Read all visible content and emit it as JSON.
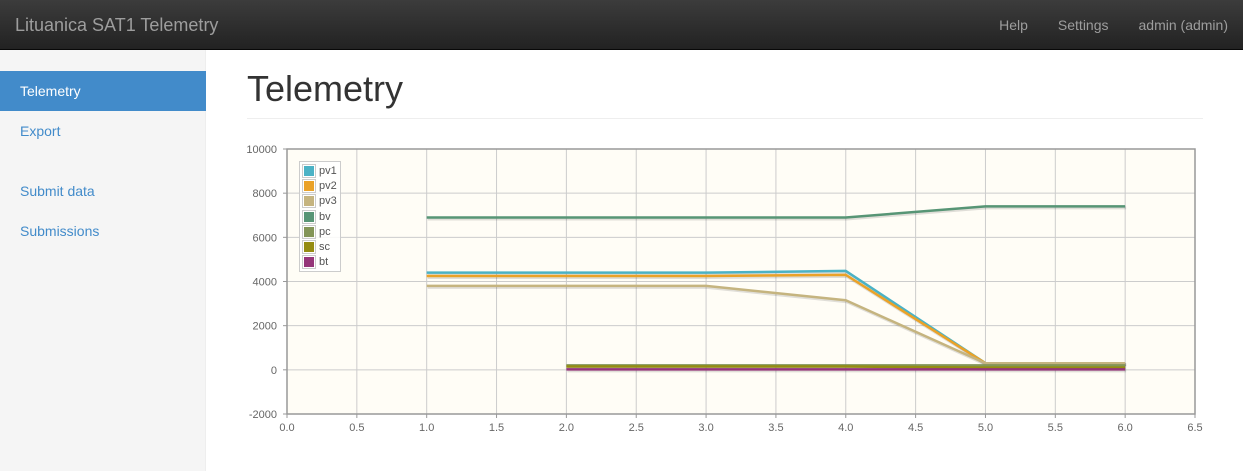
{
  "navbar": {
    "brand": "Lituanica SAT1 Telemetry",
    "links": [
      "Help",
      "Settings",
      "admin (admin)"
    ]
  },
  "sidebar": {
    "group1": [
      "Telemetry",
      "Export"
    ],
    "group2": [
      "Submit data",
      "Submissions"
    ]
  },
  "main": {
    "title": "Telemetry"
  },
  "chart_data": {
    "type": "line",
    "xlim": [
      0,
      6.5
    ],
    "ylim": [
      -2000,
      10000
    ],
    "x_ticks": [
      "0.0",
      "0.5",
      "1.0",
      "1.5",
      "2.0",
      "2.5",
      "3.0",
      "3.5",
      "4.0",
      "4.5",
      "5.0",
      "5.5",
      "6.0",
      "6.5"
    ],
    "y_ticks": [
      "10000",
      "8000",
      "6000",
      "4000",
      "2000",
      "0",
      "-2000"
    ],
    "grid": true,
    "legend_position": "top-left",
    "series": [
      {
        "name": "pv1",
        "color": "#4bb2c5",
        "x": [
          1,
          2,
          3,
          4,
          5,
          6
        ],
        "y": [
          4400,
          4400,
          4400,
          4480,
          300,
          300
        ]
      },
      {
        "name": "pv2",
        "color": "#eaa228",
        "x": [
          1,
          2,
          3,
          4,
          5,
          6
        ],
        "y": [
          4250,
          4250,
          4250,
          4300,
          300,
          300
        ]
      },
      {
        "name": "pv3",
        "color": "#c5b47f",
        "x": [
          1,
          2,
          3,
          4,
          5,
          6
        ],
        "y": [
          3800,
          3800,
          3800,
          3150,
          300,
          300
        ]
      },
      {
        "name": "bv",
        "color": "#579575",
        "x": [
          1,
          2,
          3,
          4,
          5,
          6
        ],
        "y": [
          6900,
          6900,
          6900,
          6900,
          7400,
          7400
        ]
      },
      {
        "name": "pc",
        "color": "#839557",
        "x": [
          2,
          3,
          4,
          5,
          6
        ],
        "y": [
          200,
          200,
          200,
          200,
          200
        ]
      },
      {
        "name": "sc",
        "color": "#958c12",
        "x": [
          2,
          3,
          4,
          5,
          6
        ],
        "y": [
          150,
          150,
          150,
          100,
          100
        ]
      },
      {
        "name": "bt",
        "color": "#953579",
        "x": [
          2,
          3,
          4,
          5,
          6
        ],
        "y": [
          20,
          20,
          20,
          20,
          20
        ]
      }
    ]
  }
}
